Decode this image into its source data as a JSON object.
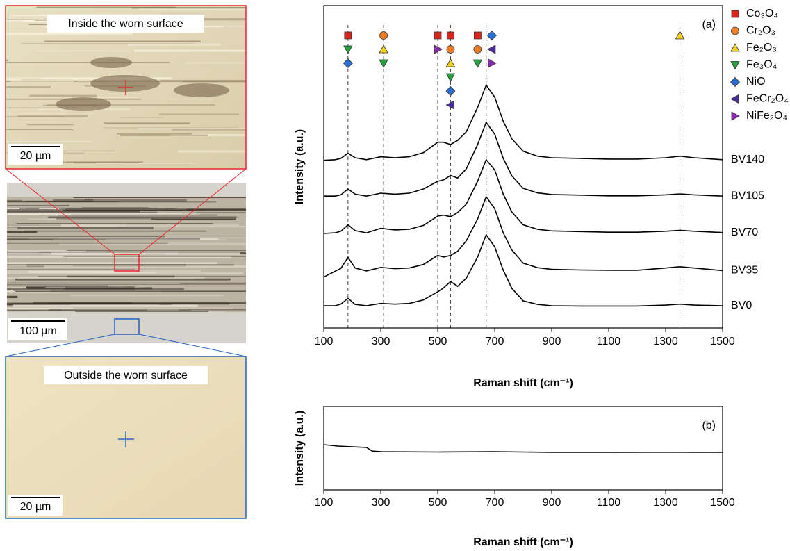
{
  "micrographs": {
    "top": {
      "title": "Inside the worn surface",
      "scale_bar": "20 µm"
    },
    "middle": {
      "scale_bar": "100 µm"
    },
    "bottom": {
      "title": "Outside the worn surface",
      "scale_bar": "20 µm"
    }
  },
  "chart_data": [
    {
      "type": "line",
      "panel_label": "(a)",
      "x_label": "Raman shift (cm⁻¹)",
      "y_label": "Intensity (a.u.)",
      "xlim": [
        100,
        1500
      ],
      "xticks": [
        100,
        300,
        500,
        700,
        900,
        1100,
        1300,
        1500
      ],
      "ylim": [
        0,
        100
      ],
      "x": [
        100,
        140,
        160,
        185,
        210,
        250,
        300,
        350,
        400,
        450,
        500,
        520,
        545,
        570,
        600,
        640,
        670,
        700,
        730,
        760,
        800,
        850,
        900,
        1000,
        1100,
        1200,
        1300,
        1350,
        1400,
        1500
      ],
      "series": [
        {
          "name": "BV140",
          "color": "#000000",
          "values": [
            52.0,
            52.2,
            52.6,
            54.2,
            52.8,
            52.2,
            53.1,
            52.8,
            53.1,
            54.4,
            57.6,
            57.6,
            56.9,
            58.2,
            60.8,
            68.4,
            75.3,
            71.6,
            64.1,
            58.7,
            54.8,
            53.3,
            52.8,
            52.6,
            52.4,
            52.4,
            52.8,
            53.3,
            52.8,
            52.2
          ]
        },
        {
          "name": "BV105",
          "color": "#000000",
          "values": [
            40.9,
            40.9,
            41.3,
            43.1,
            41.5,
            40.9,
            41.8,
            41.5,
            41.8,
            43.1,
            45.5,
            45.9,
            47.3,
            46.5,
            49.3,
            56.9,
            63.8,
            60.1,
            52.6,
            47.2,
            43.3,
            41.9,
            41.4,
            41.2,
            41.0,
            41.0,
            41.3,
            41.6,
            41.3,
            40.9
          ]
        },
        {
          "name": "BV70",
          "color": "#000000",
          "values": [
            29.3,
            29.5,
            30.0,
            32.0,
            30.2,
            29.5,
            30.9,
            30.4,
            30.6,
            31.8,
            34.7,
            35.0,
            34.5,
            35.8,
            38.4,
            45.5,
            52.2,
            49.0,
            41.5,
            36.0,
            32.0,
            30.6,
            30.1,
            29.9,
            29.7,
            29.7,
            30.0,
            30.3,
            30.0,
            29.6
          ]
        },
        {
          "name": "BV35",
          "color": "#000000",
          "values": [
            15.8,
            17.6,
            18.5,
            21.9,
            18.6,
            17.7,
            18.8,
            18.4,
            18.6,
            19.7,
            22.5,
            22.0,
            22.5,
            23.8,
            27.0,
            33.8,
            40.7,
            37.0,
            29.5,
            24.2,
            20.1,
            18.7,
            18.2,
            18.0,
            17.9,
            17.9,
            18.6,
            19.0,
            18.6,
            17.8
          ]
        },
        {
          "name": "BV0",
          "color": "#000000",
          "values": [
            6.9,
            6.9,
            7.4,
            9.2,
            7.3,
            6.9,
            7.6,
            7.4,
            7.6,
            8.7,
            11.2,
            12.4,
            14.4,
            12.9,
            15.4,
            22.0,
            28.9,
            25.2,
            17.9,
            12.3,
            8.4,
            7.3,
            6.9,
            6.8,
            6.8,
            6.8,
            7.1,
            7.4,
            7.1,
            6.9
          ]
        }
      ],
      "reference_lines": [
        185,
        310,
        500,
        545,
        670,
        1350
      ],
      "phases": [
        {
          "name": "Co₃O₄",
          "marker": "square",
          "color": "#d9261c",
          "x": [
            185,
            500,
            545,
            640
          ]
        },
        {
          "name": "Cr₂O₃",
          "marker": "circle",
          "color": "#f07e26",
          "x": [
            310,
            545,
            640
          ]
        },
        {
          "name": "Fe₂O₃",
          "marker": "triangle-up",
          "color": "#f5d31f",
          "x": [
            310,
            545,
            1350
          ]
        },
        {
          "name": "Fe₃O₄",
          "marker": "triangle-down",
          "color": "#1fa53a",
          "x": [
            185,
            310,
            545,
            640
          ]
        },
        {
          "name": "NiO",
          "marker": "diamond",
          "color": "#2a6fd6",
          "x": [
            185,
            545,
            690
          ]
        },
        {
          "name": "FeCr₂O₄",
          "marker": "triangle-left",
          "color": "#4b2ba0",
          "x": [
            545,
            690
          ]
        },
        {
          "name": "NiFe₂O₄",
          "marker": "triangle-right",
          "color": "#8f2ab8",
          "x": [
            500,
            690
          ]
        }
      ]
    },
    {
      "type": "line",
      "panel_label": "(b)",
      "x_label": "Raman shift (cm⁻¹)",
      "y_label": "Intensity (a.u.)",
      "xlim": [
        100,
        1500
      ],
      "xticks": [
        100,
        300,
        500,
        700,
        900,
        1100,
        1300,
        1500
      ],
      "ylim": [
        0,
        100
      ],
      "x": [
        100,
        150,
        200,
        250,
        270,
        300,
        500,
        700,
        900,
        1100,
        1300,
        1500
      ],
      "series": [
        {
          "color": "#000000",
          "values": [
            54.2,
            52.5,
            51.7,
            50.8,
            46.5,
            45.8,
            45.4,
            45.8,
            45.0,
            45.0,
            45.2,
            45.0
          ]
        }
      ]
    }
  ]
}
